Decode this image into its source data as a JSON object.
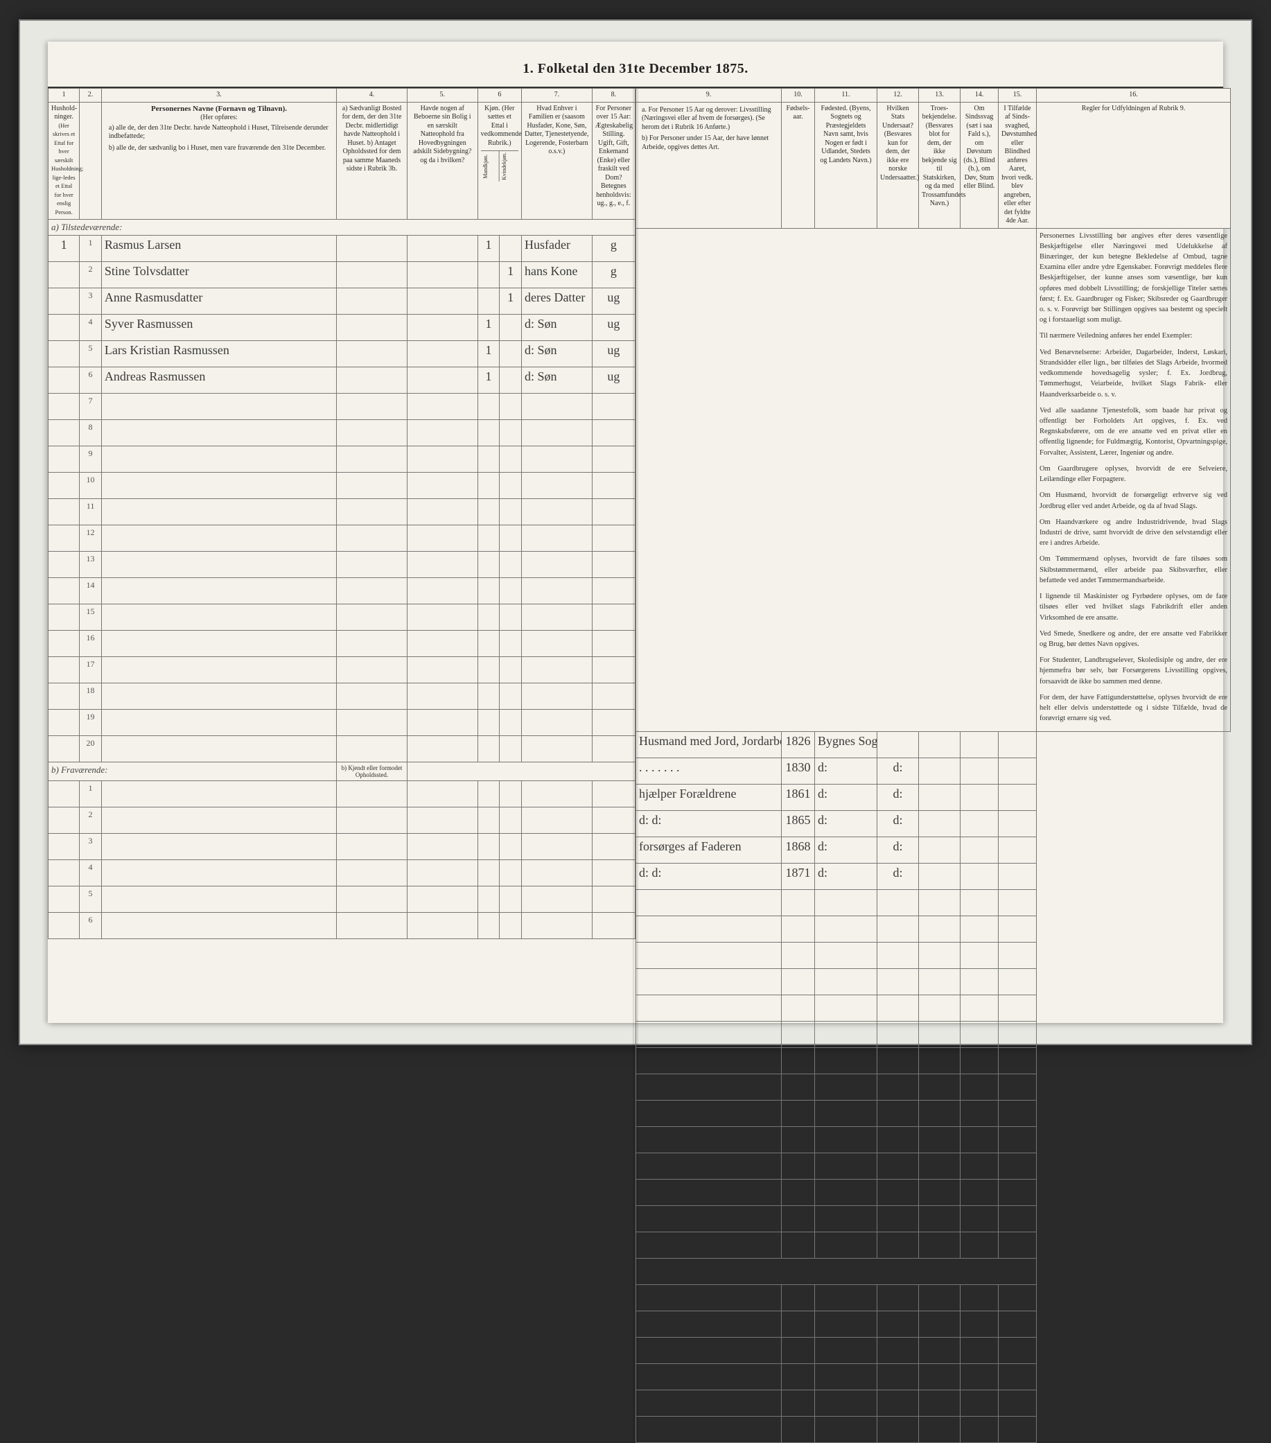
{
  "title": "1. Folketal den 31te December 1875.",
  "columns": {
    "numbers": [
      "1",
      "2.",
      "3.",
      "4.",
      "5.",
      "6",
      "7.",
      "8.",
      "9.",
      "10.",
      "11.",
      "12.",
      "13.",
      "14.",
      "15.",
      "16."
    ],
    "h1": "Hushold-ninger.",
    "h1b": "(Her skrives et Ettal for hver særskilt Husholdning; lige-ledes et Ettal for hver enslig Person.",
    "h3a": "Personernes Navne (Fornavn og Tilnavn).",
    "h3b": "(Her opføres:",
    "h3c": "a) alle de, der den 31te Decbr. havde Natteophold i Huset, Tilreisende derunder indbefattede;",
    "h3d": "b) alle de, der sædvanlig bo i Huset, men vare fraværende den 31te December.",
    "h4": "a) Sædvanligt Bosted for dem, der den 31te Decbr. midlertidigt havde Natteophold i Huset. b) Antaget Opholdssted for dem paa samme Maaneds sidste i Rubrik 3b.",
    "h5": "Havde nogen af Beboerne sin Bolig i en særskilt Natteophold fra Hovedbygningen adskilt Sidebygning? og da i hvilken?",
    "h6": "Kjøn. (Her sættes et Ettal i vedkommende Rubrik.)",
    "h6m": "Mandkjøn.",
    "h6k": "Kvindekjøn.",
    "h7": "Hvad Enhver i Familien er (saasom Husfader, Kone, Søn, Datter, Tjenestetyende, Logerende, Fosterbarn o.s.v.)",
    "h8": "For Personer over 15 Aar: Ægteskabelig Stilling. Ugift, Gift, Enkemand (Enke) eller fraskilt ved Dom? Betegnes henholdsvis: ug., g., e., f.",
    "h9a": "a. For Personer 15 Aar og derover: Livsstilling (Næringsvei eller af hvem de forsørges). (Se herom det i Rubrik 16 Anførte.)",
    "h9b": "b) For Personer under 15 Aar, der have lønnet Arbeide, opgives dettes Art.",
    "h10": "Fødsels-aar.",
    "h11": "Fødested. (Byens, Sognets og Præstegjeldets Navn samt, hvis Nogen er født i Udlandet, Stedets og Landets Navn.)",
    "h12": "Hvilken Stats Undersaat? (Besvares kun for dem, der ikke ere norske Undersaatter.)",
    "h13": "Troes-bekjendelse. (Besvares blot for dem, der ikke bekjende sig til Statskirken, og da med Trossamfundets Navn.)",
    "h14": "Om Sindssvag (sæt i saa Fald s.), om Døvstum (ds.), Blind (b.), om Døv, Stum eller Blind.",
    "h15": "I Tilfælde af Sinds-svaghed, Døvstumhed eller Blindhed anføres Aaret, hvori vedk. blev angreben, eller efter det fyldte 4de Aar.",
    "h16": "Regler for Udfyldningen af Rubrik 9."
  },
  "sections": {
    "present": "a) Tilstedeværende:",
    "absent": "b) Fraværende:",
    "absent_col4": "b) Kjendt eller formodet Opholdssted."
  },
  "rows": [
    {
      "n": "1",
      "name": "Rasmus Larsen",
      "c4": "",
      "c6m": "1",
      "c6k": "",
      "c7": "Husfader",
      "c8": "g",
      "c9": "Husmand med Jord, Jordarbeider",
      "c10": "1826",
      "c11": "Bygnes Sogn",
      "c12": "",
      "c13": ""
    },
    {
      "n": "2",
      "name": "Stine Tolvsdatter",
      "c4": "",
      "c6m": "",
      "c6k": "1",
      "c7": "hans Kone",
      "c8": "g",
      "c9": ". . . . . . .",
      "c10": "1830",
      "c11": "d:",
      "c12": "d:",
      "c13": ""
    },
    {
      "n": "3",
      "name": "Anne Rasmusdatter",
      "c4": "",
      "c6m": "",
      "c6k": "1",
      "c7": "deres Datter",
      "c8": "ug",
      "c9": "hjælper Forældrene",
      "c10": "1861",
      "c11": "d:",
      "c12": "d:",
      "c13": ""
    },
    {
      "n": "4",
      "name": "Syver Rasmussen",
      "c4": "",
      "c6m": "1",
      "c6k": "",
      "c7": "d: Søn",
      "c8": "ug",
      "c9": "d:     d:",
      "c10": "1865",
      "c11": "d:",
      "c12": "d:",
      "c13": ""
    },
    {
      "n": "5",
      "name": "Lars Kristian Rasmussen",
      "c4": "",
      "c6m": "1",
      "c6k": "",
      "c7": "d: Søn",
      "c8": "ug",
      "c9": "forsørges af Faderen",
      "c10": "1868",
      "c11": "d:",
      "c12": "d:",
      "c13": ""
    },
    {
      "n": "6",
      "name": "Andreas Rasmussen",
      "c4": "",
      "c6m": "1",
      "c6k": "",
      "c7": "d: Søn",
      "c8": "ug",
      "c9": "d:     d:",
      "c10": "1871",
      "c11": "d:",
      "c12": "d:",
      "c13": ""
    }
  ],
  "blank_rows_a": [
    "7",
    "8",
    "9",
    "10",
    "11",
    "12",
    "13",
    "14",
    "15",
    "16",
    "17",
    "18",
    "19",
    "20"
  ],
  "blank_rows_b": [
    "1",
    "2",
    "3",
    "4",
    "5",
    "6"
  ],
  "instructions": {
    "p1": "Personernes Livsstilling bør angives efter deres væsentlige Beskjæftigelse eller Næringsvei med Udelukkelse af Binæringer, der kun betegne Bekledelse af Ombud, tagne Examina eller andre ydre Egenskaber. Forøvrigt meddeles flere Beskjæftigelser, der kunne anses som væsentlige, bør kun opføres med dobbelt Livsstilling; de forskjellige Titeler sættes først; f. Ex. Gaardbruger og Fisker; Skibsreder og Gaardbruger o. s. v. Forøvrigt bør Stillingen opgives saa bestemt og specielt og i forstaaeligt som muligt.",
    "p2": "Til nærmere Veiledning anføres her endel Exempler:",
    "p3": "Ved Benævnelserne: Arbeider, Dagarbeider, Inderst, Løskari, Strandsidder eller lign., bør tilføies det Slags Arbeide, hvormed vedkommende hovedsagelig sysler; f. Ex. Jordbrug, Tømmerhugst, Veiarbeide, hvilket Slags Fabrik- eller Haandverksarbeide o. s. v.",
    "p4": "Ved alle saadanne Tjenestefolk, som baade har privat og offentligt ber Forholdets Art opgives, f. Ex. ved Regnskabsførere, om de ere ansatte ved en privat eller en offentlig lignende; for Fuldmægtig, Kontorist, Opvartningspige, Forvalter, Assistent, Lærer, Ingeniør og andre.",
    "p5": "Om Gaardbrugere oplyses, hvorvidt de ere Selveiere, Leilændinge eller Forpagtere.",
    "p6": "Om Husmænd, hvorvidt de forsørgeligt erhverve sig ved Jordbrug eller ved andet Arbeide, og da af hvad Slags.",
    "p7": "Om Haandværkere og andre Industridrivende, hvad Slags Industri de drive, samt hvorvidt de drive den selvstændigt eller ere i andres Arbeide.",
    "p8": "Om Tømmermænd oplyses, hvorvidt de fare tilsøes som Skibstømmermænd, eller arbeide paa Skibsværfter, eller befattede ved andet Tømmermandsarbeide.",
    "p9": "I lignende til Maskinister og Fyrbødere oplyses, om de fare tilsøes eller ved hvilket slags Fabrikdrift eller anden Virksomhed de ere ansatte.",
    "p10": "Ved Smede, Snedkere og andre, der ere ansatte ved Fabrikker og Brug, bør dettes Navn opgives.",
    "p11": "For Studenter, Landbrugselever, Skoledisiple og andre, der ere hjemmefra bør selv, bør Forsørgerens Livsstilling opgives, forsaavidt de ikke bo sammen med denne.",
    "p12": "For dem, der have Fattigunderstøttelse, oplyses hvorvidt de ere helt eller delvis understøttede og i sidste Tilfælde, hvad de forøvrigt ernære sig ved."
  },
  "colors": {
    "paper": "#f4f2ea",
    "frame": "#e8e8e3",
    "line": "#777777",
    "ink": "#3a3a3a",
    "bg": "#2a2a2a"
  }
}
